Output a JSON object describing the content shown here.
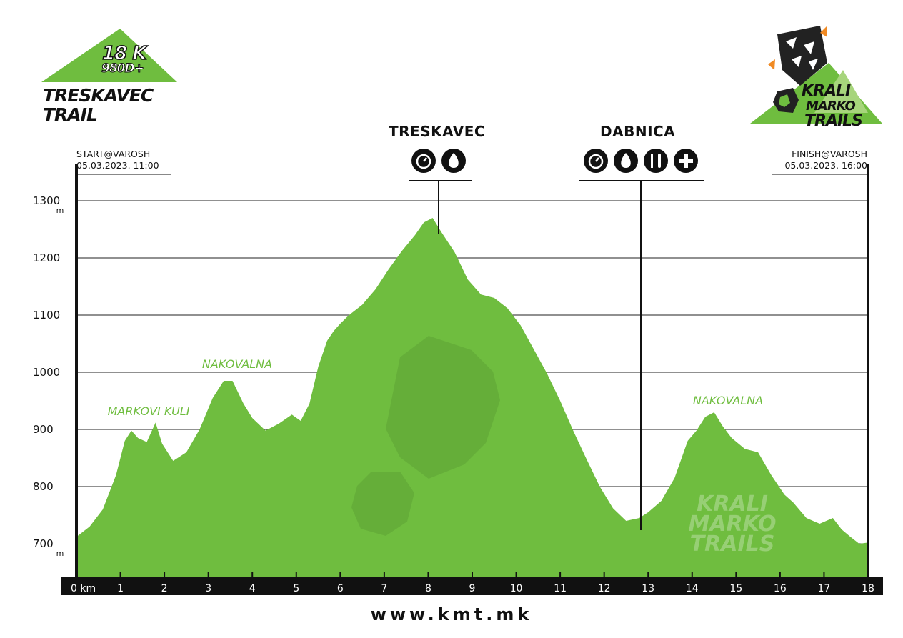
{
  "race": {
    "distance": "18 K",
    "elevation_gain": "980D+",
    "name_line1": "TRESKAVEC",
    "name_line2": "TRAIL"
  },
  "brand": {
    "logo_line1": "KRALI",
    "logo_line2": "MARKO",
    "logo_line3": "TRAILS",
    "website": "www.kmt.mk"
  },
  "start": {
    "label": "START@VAROSH",
    "datetime": "05.03.2023. 11:00"
  },
  "finish": {
    "label": "FINISH@VAROSH",
    "datetime": "05.03.2023. 16:00"
  },
  "checkpoints": [
    {
      "name": "TRESKAVEC",
      "km": 8.2,
      "icons": [
        "timing-icon",
        "water-icon"
      ]
    },
    {
      "name": "DABNICA",
      "km": 12.7,
      "icons": [
        "timing-icon",
        "water-icon",
        "food-icon",
        "medical-icon"
      ]
    }
  ],
  "colors": {
    "profile_fill": "#6fbd3f",
    "text": "#111111",
    "axis_band": "#111111"
  },
  "chart_data": {
    "type": "area",
    "xlabel": "km",
    "ylabel": "m",
    "xlim": [
      0,
      18
    ],
    "ylim": [
      650,
      1310
    ],
    "x_ticks": [
      0,
      1,
      2,
      3,
      4,
      5,
      6,
      7,
      8,
      9,
      10,
      11,
      12,
      13,
      14,
      15,
      16,
      17,
      18
    ],
    "x_tick_labels": [
      "0 km",
      "1",
      "2",
      "3",
      "4",
      "5",
      "6",
      "7",
      "8",
      "9",
      "10",
      "11",
      "12",
      "13",
      "14",
      "15",
      "16",
      "17",
      "18"
    ],
    "y_ticks": [
      700,
      800,
      900,
      1000,
      1100,
      1200,
      1300
    ],
    "y_tick_labels": [
      "700",
      "800",
      "900",
      "1000",
      "1100",
      "1200",
      "1300"
    ],
    "y_unit_ticks": [
      700,
      1300
    ],
    "grid": true,
    "annotations": [
      {
        "text": "MARKOVI KULI",
        "km": 1.4,
        "elevation": 920
      },
      {
        "text": "NAKOVALNA",
        "km": 3.3,
        "elevation": 1012
      },
      {
        "text": "NAKOVALNA",
        "km": 14.7,
        "elevation": 955
      }
    ],
    "series": [
      {
        "x": [
          0,
          0.3,
          0.6,
          0.9,
          1.1,
          1.25,
          1.4,
          1.6,
          1.8,
          1.95,
          2.2,
          2.5,
          2.8,
          3.1,
          3.35,
          3.55,
          3.8,
          4.0,
          4.3,
          4.6,
          4.9,
          5.1,
          5.3,
          5.5,
          5.7,
          5.85,
          6.0,
          6.2,
          6.5,
          6.8,
          7.1,
          7.4,
          7.7,
          7.9,
          8.1,
          8.3,
          8.6,
          8.9,
          9.2,
          9.5,
          9.8,
          10.1,
          10.4,
          10.7,
          11.0,
          11.3,
          11.6,
          11.9,
          12.2,
          12.5,
          12.8,
          13.0,
          13.3,
          13.6,
          13.9,
          14.1,
          14.3,
          14.5,
          14.7,
          14.9,
          15.2,
          15.5,
          15.8,
          16.1,
          16.3,
          16.6,
          16.9,
          17.2,
          17.4,
          17.6,
          17.8,
          18.0
        ],
        "y": [
          712,
          730,
          760,
          820,
          880,
          898,
          885,
          878,
          912,
          875,
          845,
          860,
          900,
          955,
          985,
          985,
          945,
          920,
          898,
          910,
          926,
          915,
          945,
          1010,
          1055,
          1072,
          1085,
          1100,
          1118,
          1145,
          1180,
          1212,
          1240,
          1262,
          1270,
          1245,
          1210,
          1162,
          1136,
          1130,
          1112,
          1082,
          1040,
          998,
          950,
          897,
          848,
          800,
          762,
          740,
          745,
          755,
          775,
          815,
          880,
          898,
          922,
          930,
          905,
          885,
          866,
          860,
          820,
          786,
          772,
          745,
          735,
          745,
          725,
          712,
          700,
          702
        ]
      }
    ]
  }
}
